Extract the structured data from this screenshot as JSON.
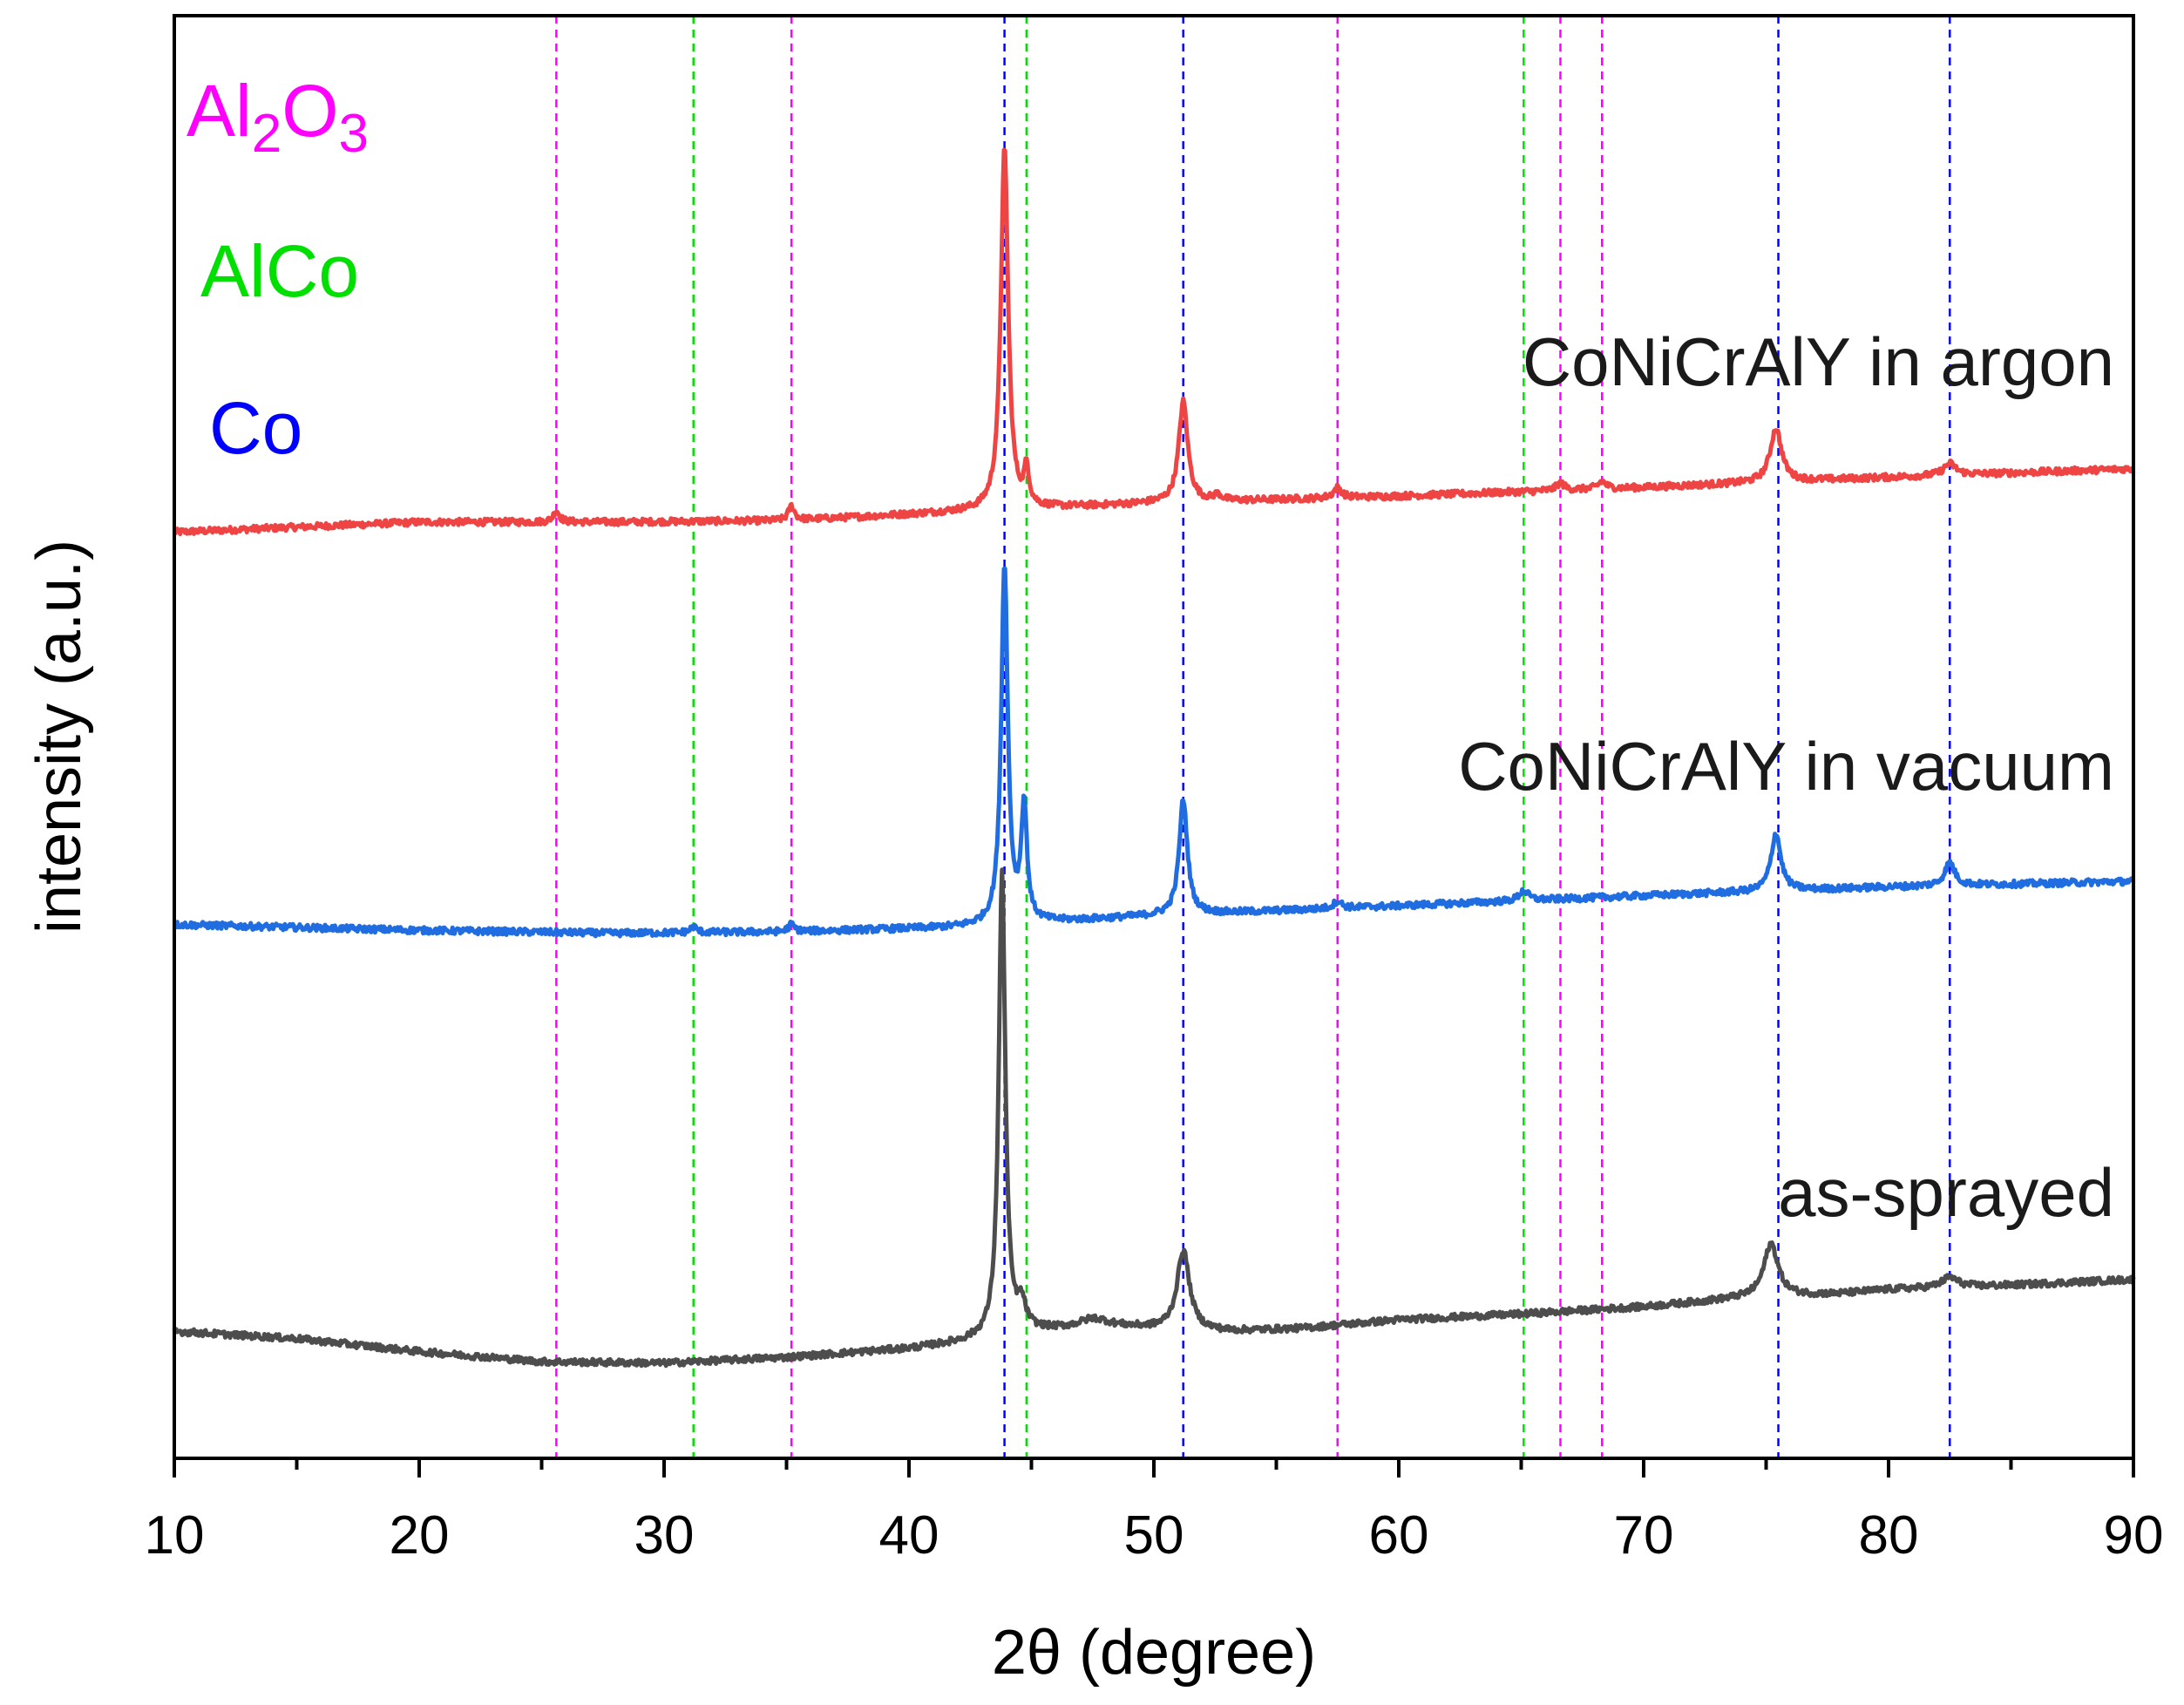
{
  "chart_data": {
    "type": "line",
    "title": "",
    "xlabel": "2θ (degree)",
    "ylabel": "intensity (a.u.)",
    "xlim": [
      10,
      90
    ],
    "ylim": [
      0,
      100
    ],
    "xticks": [
      10,
      20,
      30,
      40,
      50,
      60,
      70,
      80,
      90
    ],
    "xtick_labels": [
      "10",
      "20",
      "30",
      "40",
      "50",
      "60",
      "70",
      "80",
      "90"
    ],
    "yticks_shown": false,
    "grid": false,
    "legend": {
      "placement": "top-left",
      "entries": [
        {
          "phase": "Al2O3",
          "base": "Al",
          "sub1": "2",
          "mid": "O",
          "sub2": "3",
          "color": "#ff00ff"
        },
        {
          "phase": "AlCo",
          "text": "AlCo",
          "color": "#00e000"
        },
        {
          "phase": "Co",
          "text": "Co",
          "color": "#0000ff"
        }
      ]
    },
    "reference_lines": [
      {
        "phase": "Al2O3",
        "color": "#ff00ff",
        "positions": [
          25.6,
          35.2,
          57.5,
          66.6,
          68.3
        ]
      },
      {
        "phase": "AlCo",
        "color": "#00e000",
        "positions": [
          31.2,
          44.8,
          65.1
        ]
      },
      {
        "phase": "Co",
        "color": "#0000ff",
        "positions": [
          43.9,
          51.2,
          75.5,
          82.5
        ]
      }
    ],
    "series": [
      {
        "name": "CoNiCrAlY in argon",
        "color": "#ee4444",
        "baseline": [
          [
            10,
            64.2
          ],
          [
            20,
            64.9
          ],
          [
            28,
            64.9
          ],
          [
            35,
            65.0
          ],
          [
            42,
            65.6
          ],
          [
            50,
            66.2
          ],
          [
            60,
            66.7
          ],
          [
            70,
            67.3
          ],
          [
            80,
            68.0
          ],
          [
            90,
            68.6
          ]
        ],
        "peaks": [
          [
            25.6,
            0.8,
            0.15
          ],
          [
            35.2,
            1.0,
            0.15
          ],
          [
            43.9,
            25.0,
            0.18
          ],
          [
            44.8,
            2.5,
            0.12
          ],
          [
            51.2,
            7.0,
            0.22
          ],
          [
            52.6,
            0.4,
            0.2
          ],
          [
            57.5,
            0.7,
            0.2
          ],
          [
            66.6,
            0.5,
            0.2
          ],
          [
            68.3,
            0.5,
            0.2
          ],
          [
            75.4,
            3.7,
            0.28
          ],
          [
            82.5,
            0.8,
            0.3
          ]
        ]
      },
      {
        "name": "CoNiCrAlY in vacuum",
        "color": "#1f6de0",
        "baseline": [
          [
            10,
            37.0
          ],
          [
            20,
            36.6
          ],
          [
            28,
            36.4
          ],
          [
            35,
            36.5
          ],
          [
            42,
            36.8
          ],
          [
            50,
            37.6
          ],
          [
            60,
            38.3
          ],
          [
            70,
            39.0
          ],
          [
            80,
            39.6
          ],
          [
            90,
            40.0
          ]
        ],
        "peaks": [
          [
            31.2,
            0.4,
            0.15
          ],
          [
            35.2,
            0.5,
            0.15
          ],
          [
            43.9,
            25.0,
            0.16
          ],
          [
            44.7,
            8.0,
            0.14
          ],
          [
            51.2,
            8.0,
            0.2
          ],
          [
            57.5,
            0.5,
            0.2
          ],
          [
            65.1,
            0.7,
            0.22
          ],
          [
            75.4,
            4.0,
            0.24
          ],
          [
            82.5,
            1.6,
            0.25
          ]
        ]
      },
      {
        "name": "as-sprayed",
        "color": "#4d4d4d",
        "baseline": [
          [
            10,
            8.8
          ],
          [
            15,
            8.3
          ],
          [
            20,
            7.4
          ],
          [
            25,
            6.7
          ],
          [
            30,
            6.6
          ],
          [
            35,
            7.0
          ],
          [
            40,
            7.6
          ],
          [
            42,
            8.0
          ],
          [
            45,
            8.8
          ],
          [
            48,
            9.2
          ],
          [
            50,
            9.0
          ],
          [
            53,
            8.8
          ],
          [
            56,
            9.0
          ],
          [
            60,
            9.6
          ],
          [
            65,
            10.0
          ],
          [
            70,
            10.5
          ],
          [
            74,
            11.1
          ],
          [
            78,
            11.4
          ],
          [
            80,
            11.7
          ],
          [
            85,
            12.0
          ],
          [
            90,
            12.4
          ]
        ],
        "peaks": [
          [
            43.8,
            32.0,
            0.16
          ],
          [
            44.6,
            1.7,
            0.2
          ],
          [
            47.5,
            0.5,
            0.6
          ],
          [
            51.2,
            5.5,
            0.3
          ],
          [
            75.2,
            3.7,
            0.35
          ],
          [
            82.5,
            0.7,
            0.4
          ]
        ]
      }
    ],
    "series_labels": [
      {
        "text": "CoNiCrAlY in argon",
        "series": "CoNiCrAlY in argon"
      },
      {
        "text": "CoNiCrAlY in vacuum",
        "series": "CoNiCrAlY in vacuum"
      },
      {
        "text": "as-sprayed",
        "series": "as-sprayed"
      }
    ]
  }
}
